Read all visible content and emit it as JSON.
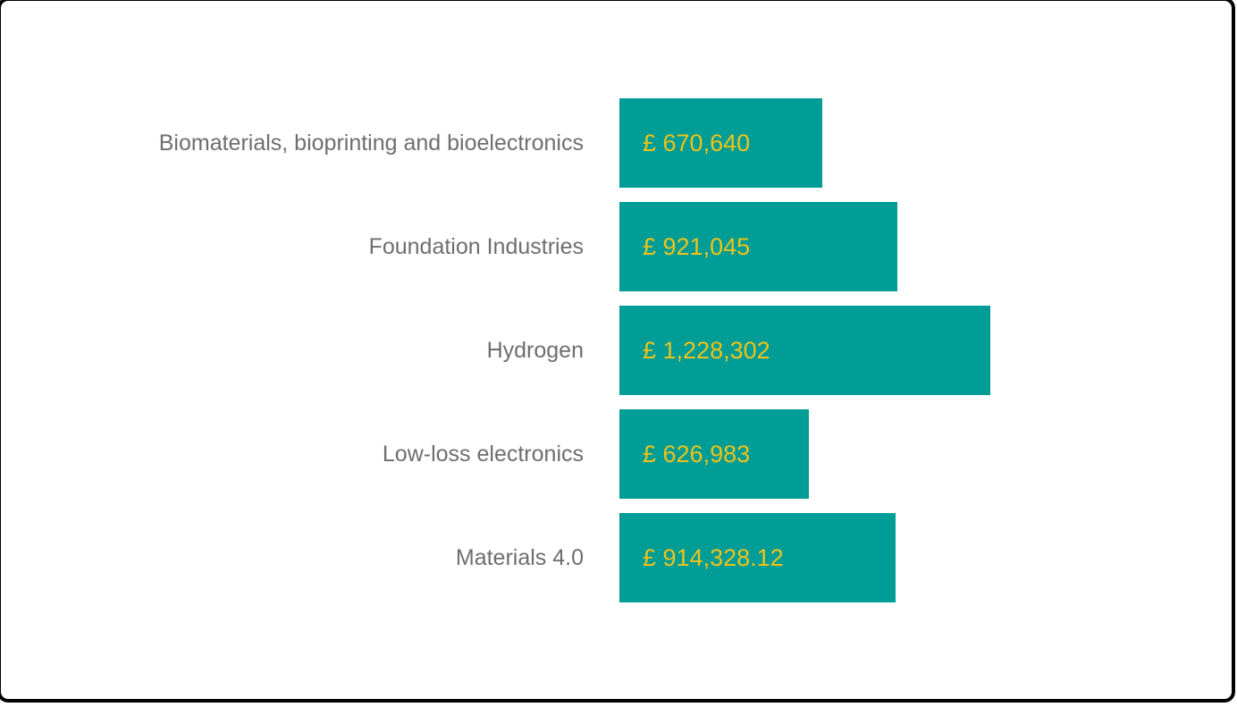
{
  "page": {
    "background_color": "#ffffff",
    "frame_border_color": "#000000"
  },
  "chart_data": {
    "type": "bar",
    "orientation": "horizontal",
    "title": "",
    "xlabel": "",
    "ylabel": "",
    "categories": [
      "Biomaterials, bioprinting and bioelectronics",
      "Foundation Industries",
      "Hydrogen",
      "Low-loss electronics",
      "Materials 4.0"
    ],
    "values": [
      670640,
      921045,
      1228302,
      626983,
      914328.12
    ],
    "value_labels": [
      "£ 670,640",
      "£ 921,045",
      "£ 1,228,302",
      "£ 626,983",
      "£ 914,328.12"
    ],
    "xlim": [
      0,
      1228302
    ],
    "grid": false,
    "legend": false,
    "bar_color": "#009D96",
    "value_label_color": "#EFC319",
    "category_label_color": "#6E6E6E"
  }
}
